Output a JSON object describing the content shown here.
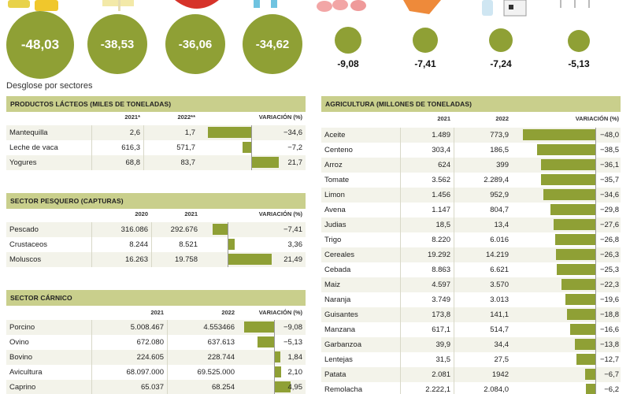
{
  "top": {
    "bubbles": [
      {
        "value": "-48,03",
        "n": -48.03
      },
      {
        "value": "-38,53",
        "n": -38.53
      },
      {
        "value": "-36,06",
        "n": -36.06
      },
      {
        "value": "-34,62",
        "n": -34.62
      },
      {
        "value": "-9,08",
        "n": -9.08
      },
      {
        "value": "-7,41",
        "n": -7.41
      },
      {
        "value": "-7,24",
        "n": -7.24
      },
      {
        "value": "-5,13",
        "n": -5.13
      }
    ]
  },
  "breakdown_label": "Desglose por sectores",
  "colors": {
    "bar": "#8fa035",
    "header": "#c9cf8c"
  },
  "chart_data": [
    {
      "type": "table",
      "title": "PRODUCTOS LÁCTEOS (MILES DE TONELADAS)",
      "columns": [
        "",
        "2021*",
        "2022**",
        "VARIACIÓN (%)"
      ],
      "rows": [
        {
          "label": "Mantequilla",
          "a": "2,6",
          "b": "1,7",
          "var": "−34,6",
          "v": -34.6
        },
        {
          "label": "Leche de vaca",
          "a": "616,3",
          "b": "571,7",
          "var": "−7,2",
          "v": -7.2
        },
        {
          "label": "Yogures",
          "a": "68,8",
          "b": "83,7",
          "var": "21,7",
          "v": 21.7
        }
      ]
    },
    {
      "type": "table",
      "title": "SECTOR PESQUERO (CAPTURAS)",
      "columns": [
        "",
        "2020",
        "2021",
        "VARIACIÓN (%)"
      ],
      "rows": [
        {
          "label": "Pescado",
          "a": "316.086",
          "b": "292.676",
          "var": "−7,41",
          "v": -7.41
        },
        {
          "label": "Crustaceos",
          "a": "8.244",
          "b": "8.521",
          "var": "3,36",
          "v": 3.36
        },
        {
          "label": "Moluscos",
          "a": "16.263",
          "b": "19.758",
          "var": "21,49",
          "v": 21.49
        }
      ]
    },
    {
      "type": "table",
      "title": "SECTOR CÁRNICO",
      "columns": [
        "",
        "2021",
        "2022",
        "VARIACIÓN (%)"
      ],
      "rows": [
        {
          "label": "Porcino",
          "a": "5.008.467",
          "b": "4.553466",
          "var": "−9,08",
          "v": -9.08
        },
        {
          "label": "Ovino",
          "a": "672.080",
          "b": "637.613",
          "var": "−5,13",
          "v": -5.13
        },
        {
          "label": "Bovino",
          "a": "224.605",
          "b": "228.744",
          "var": "1,84",
          "v": 1.84
        },
        {
          "label": "Avicultura",
          "a": "68.097.000",
          "b": "69.525.000",
          "var": "2,10",
          "v": 2.1
        },
        {
          "label": "Caprino",
          "a": "65.037",
          "b": "68.254",
          "var": "4,95",
          "v": 4.95
        }
      ]
    },
    {
      "type": "table",
      "title": "AGRICULTURA (MILLONES DE TONELADAS)",
      "columns": [
        "",
        "2021",
        "2022",
        "VARIACIÓN (%)"
      ],
      "rows": [
        {
          "label": "Aceite",
          "a": "1.489",
          "b": "773,9",
          "var": "−48,0",
          "v": -48.0
        },
        {
          "label": "Centeno",
          "a": "303,4",
          "b": "186,5",
          "var": "−38,5",
          "v": -38.5
        },
        {
          "label": "Arroz",
          "a": "624",
          "b": "399",
          "var": "−36,1",
          "v": -36.1
        },
        {
          "label": "Tomate",
          "a": "3.562",
          "b": "2.289,4",
          "var": "−35,7",
          "v": -35.7
        },
        {
          "label": "Limon",
          "a": "1.456",
          "b": "952,9",
          "var": "−34,6",
          "v": -34.6
        },
        {
          "label": "Avena",
          "a": "1.147",
          "b": "804,7",
          "var": "−29,8",
          "v": -29.8
        },
        {
          "label": "Judias",
          "a": "18,5",
          "b": "13,4",
          "var": "−27,6",
          "v": -27.6
        },
        {
          "label": "Trigo",
          "a": "8.220",
          "b": "6.016",
          "var": "−26,8",
          "v": -26.8
        },
        {
          "label": "Cereales",
          "a": "19.292",
          "b": "14.219",
          "var": "−26,3",
          "v": -26.3
        },
        {
          "label": "Cebada",
          "a": "8.863",
          "b": "6.621",
          "var": "−25,3",
          "v": -25.3
        },
        {
          "label": "Maiz",
          "a": "4.597",
          "b": "3.570",
          "var": "−22,3",
          "v": -22.3
        },
        {
          "label": "Naranja",
          "a": "3.749",
          "b": "3.013",
          "var": "−19,6",
          "v": -19.6
        },
        {
          "label": "Guisantes",
          "a": "173,8",
          "b": "141,1",
          "var": "−18,8",
          "v": -18.8
        },
        {
          "label": "Manzana",
          "a": "617,1",
          "b": "514,7",
          "var": "−16,6",
          "v": -16.6
        },
        {
          "label": "Garbanzoa",
          "a": "39,9",
          "b": "34,4",
          "var": "−13,8",
          "v": -13.8
        },
        {
          "label": "Lentejas",
          "a": "31,5",
          "b": "27,5",
          "var": "−12,7",
          "v": -12.7
        },
        {
          "label": "Patata",
          "a": "2.081",
          "b": "1942",
          "var": "−6,7",
          "v": -6.7
        },
        {
          "label": "Remolacha",
          "a": "2.222,1",
          "b": "2.084,0",
          "var": "−6,2",
          "v": -6.2
        }
      ]
    }
  ]
}
